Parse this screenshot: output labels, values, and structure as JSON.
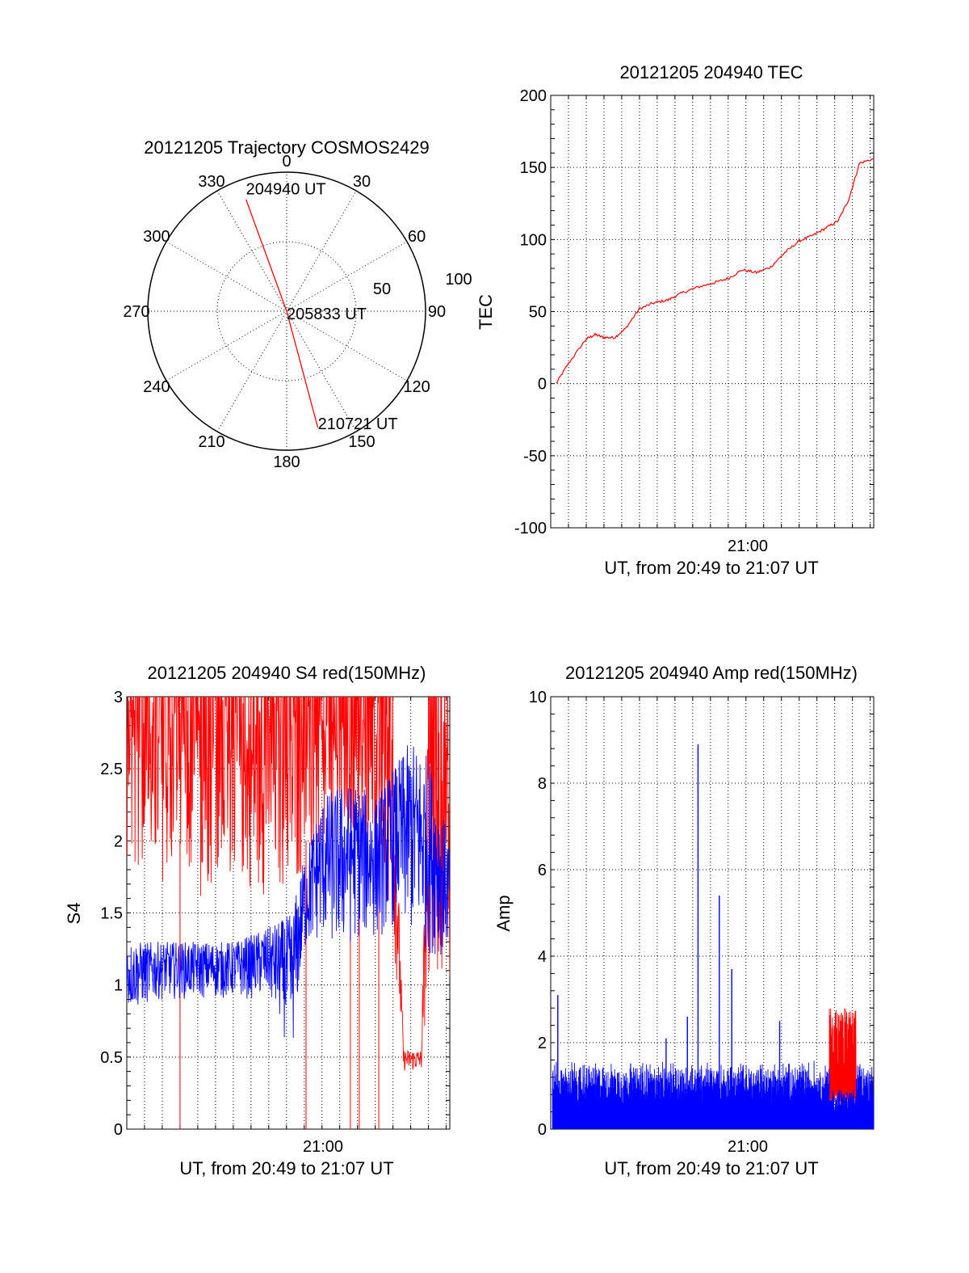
{
  "chart_data": [
    {
      "type": "polar",
      "title": "20121205 Trajectory COSMOS2429",
      "angle_labels": [
        "0",
        "30",
        "60",
        "90",
        "120",
        "150",
        "180",
        "210",
        "240",
        "270",
        "300",
        "330"
      ],
      "radius_labels": [
        "50",
        "100"
      ],
      "series": [
        {
          "color": "#ff0000",
          "points": [
            {
              "az": 340,
              "el": 13
            },
            {
              "az": 0,
              "el": 90
            },
            {
              "az": 165,
              "el": 12
            }
          ]
        }
      ],
      "annotations": [
        {
          "text": "204940 UT",
          "az": 340,
          "el": 13
        },
        {
          "text": "205833 UT",
          "az": 0,
          "el": 90
        },
        {
          "text": "210721 UT",
          "az": 165,
          "el": 12
        }
      ]
    },
    {
      "type": "line",
      "title": "20121205 204940 TEC",
      "xlabel": "UT, from 20:49 to 21:07 UT",
      "ylabel": "TEC",
      "xtick_label": "21:00",
      "ylim": [
        -100,
        200
      ],
      "yticks": [
        "-100",
        "-50",
        "0",
        "50",
        "100",
        "150",
        "200"
      ],
      "xlim_min": [
        0,
        18.2
      ],
      "grid": true,
      "series": [
        {
          "color": "#ff0000",
          "x_min": [
            0.3,
            1.0,
            2.0,
            2.5,
            3.0,
            3.6,
            4.2,
            5.0,
            5.8,
            6.6,
            7.4,
            8.3,
            9.2,
            10.0,
            10.8,
            11.6,
            12.4,
            13.2,
            14.0,
            14.8,
            15.5,
            16.2,
            16.8,
            17.4,
            18.2
          ],
          "values": [
            0,
            14,
            31,
            34,
            32,
            32,
            38,
            52,
            56,
            58,
            63,
            67,
            70,
            73,
            79,
            77,
            81,
            91,
            99,
            103,
            108,
            113,
            128,
            153,
            156
          ]
        }
      ]
    },
    {
      "type": "line",
      "title": "20121205 204940 S4 red(150MHz)",
      "xlabel": "UT, from 20:49 to 21:07 UT",
      "ylabel": "S4",
      "xtick_label": "21:00",
      "ylim": [
        0,
        3
      ],
      "yticks": [
        "0",
        "0.5",
        "1",
        "1.5",
        "2",
        "2.5",
        "3"
      ],
      "xlim_min": [
        0,
        18.2
      ],
      "grid": true,
      "series": [
        {
          "color": "#ff0000",
          "envelope": [
            [
              0,
              1.8,
              3.0
            ],
            [
              2,
              1.7,
              3.0
            ],
            [
              4,
              1.6,
              3.0
            ],
            [
              6,
              1.7,
              3.0
            ],
            [
              8,
              1.6,
              3.0
            ],
            [
              10,
              1.7,
              3.0
            ],
            [
              12,
              1.9,
              3.0
            ],
            [
              14,
              1.9,
              3.0
            ],
            [
              15,
              1.3,
              2.9
            ],
            [
              15.6,
              0.4,
              0.55
            ],
            [
              16.6,
              0.4,
              0.55
            ],
            [
              17,
              1.0,
              3.0
            ],
            [
              18.2,
              1.0,
              3.0
            ]
          ],
          "dips": [
            3.0,
            10.1,
            12.6,
            13.1,
            14.2
          ]
        },
        {
          "color": "#0000ff",
          "envelope": [
            [
              0,
              0.8,
              1.3
            ],
            [
              2,
              0.9,
              1.3
            ],
            [
              4,
              0.9,
              1.3
            ],
            [
              6,
              0.9,
              1.3
            ],
            [
              8,
              0.9,
              1.4
            ],
            [
              9.3,
              0.5,
              1.5
            ],
            [
              10,
              1.2,
              1.9
            ],
            [
              11,
              1.3,
              2.3
            ],
            [
              12,
              1.2,
              2.4
            ],
            [
              13,
              1.3,
              2.4
            ],
            [
              14,
              1.3,
              2.3
            ],
            [
              15,
              1.4,
              2.5
            ],
            [
              16,
              1.3,
              2.7
            ],
            [
              17,
              1.2,
              2.6
            ],
            [
              18.2,
              1.2,
              2.0
            ]
          ]
        }
      ]
    },
    {
      "type": "line",
      "title": "20121205 204940 Amp red(150MHz)",
      "xlabel": "UT, from 20:49 to 21:07 UT",
      "ylabel": "Amp",
      "xtick_label": "21:00",
      "ylim": [
        0,
        10
      ],
      "yticks": [
        "0",
        "2",
        "4",
        "6",
        "8",
        "10"
      ],
      "xlim_min": [
        0,
        18.2
      ],
      "grid": true,
      "series": [
        {
          "color": "#ff0000",
          "x_range_min": [
            15.7,
            17.2
          ],
          "envelope": [
            0.9,
            2.8
          ]
        },
        {
          "color": "#0000ff",
          "typical_peak": 1.2,
          "spikes": [
            {
              "x_min": 0.4,
              "value": 3.1
            },
            {
              "x_min": 6.5,
              "value": 2.1
            },
            {
              "x_min": 7.7,
              "value": 2.6
            },
            {
              "x_min": 8.3,
              "value": 8.9
            },
            {
              "x_min": 9.5,
              "value": 5.4
            },
            {
              "x_min": 10.2,
              "value": 3.7
            },
            {
              "x_min": 12.9,
              "value": 2.5
            }
          ]
        }
      ]
    }
  ]
}
